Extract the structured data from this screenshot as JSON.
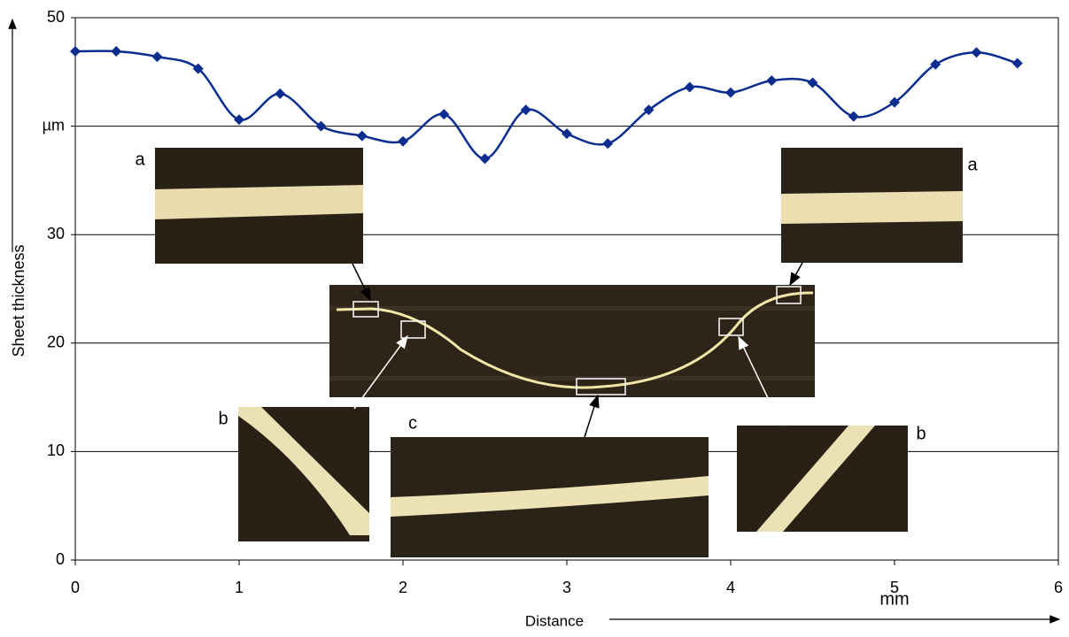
{
  "chart_data": {
    "type": "line",
    "ylabel": "Sheet thickness",
    "xlabel": "Distance",
    "x_unit": "mm",
    "x": [
      0,
      0.25,
      0.5,
      0.75,
      1,
      1.25,
      1.5,
      1.75,
      2,
      2.25,
      2.5,
      2.75,
      3,
      3.25,
      3.5,
      3.75,
      4,
      4.25,
      4.5,
      4.75,
      5,
      5.25,
      5.5,
      5.75
    ],
    "values": [
      46.9,
      46.9,
      46.4,
      45.3,
      40.6,
      43.0,
      40.0,
      39.1,
      38.6,
      41.1,
      37.0,
      41.5,
      39.3,
      38.4,
      41.5,
      43.6,
      43.1,
      44.2,
      44.0,
      40.9,
      42.2,
      45.7,
      46.8,
      45.8
    ],
    "color": "#0b2d8f",
    "xlim": [
      0,
      6
    ],
    "xticks": [
      0,
      1,
      2,
      3,
      4,
      5,
      6
    ],
    "ylim": [
      0,
      50
    ],
    "yticks": [
      0,
      10,
      20,
      30,
      {
        "value": 40,
        "label": "µm"
      },
      50
    ],
    "grid": true,
    "inset_labels": [
      "a",
      "b",
      "c",
      "b",
      "a"
    ]
  }
}
